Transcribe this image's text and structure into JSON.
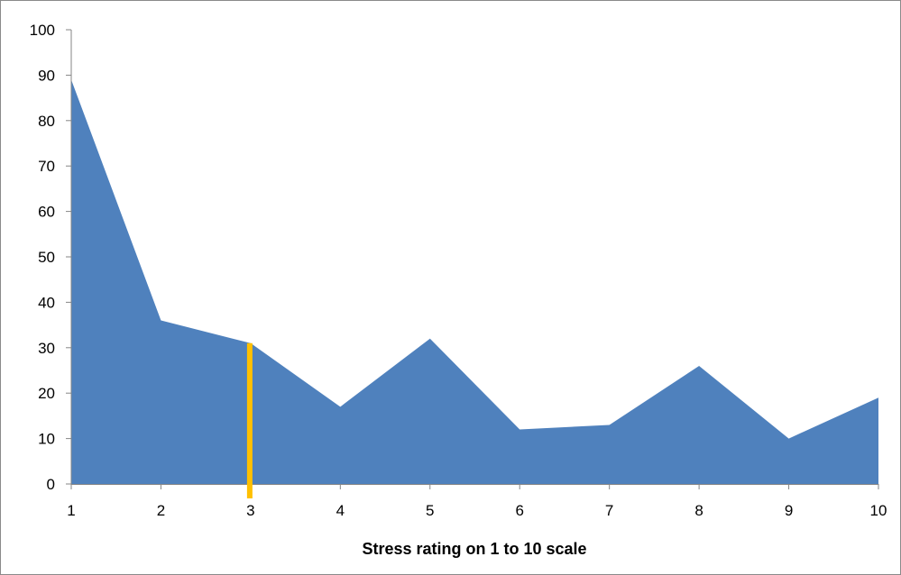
{
  "chart_data": {
    "type": "area",
    "title": "",
    "xlabel": "Stress rating on 1 to 10 scale",
    "ylabel": "",
    "x": [
      1,
      2,
      3,
      4,
      5,
      6,
      7,
      8,
      9,
      10
    ],
    "series": [
      {
        "values": [
          89,
          36,
          31,
          17,
          32,
          12,
          13,
          26,
          10,
          19
        ],
        "color": "#4f81bd"
      }
    ],
    "xlim": [
      1,
      10
    ],
    "ylim": [
      0,
      100
    ],
    "y_ticks": [
      0,
      10,
      20,
      30,
      40,
      50,
      60,
      70,
      80,
      90,
      100
    ],
    "x_ticks": [
      1,
      2,
      3,
      4,
      5,
      6,
      7,
      8,
      9,
      10
    ],
    "grid": false,
    "legend": "none",
    "marker": {
      "x": 3,
      "color": "#ffc000"
    }
  }
}
